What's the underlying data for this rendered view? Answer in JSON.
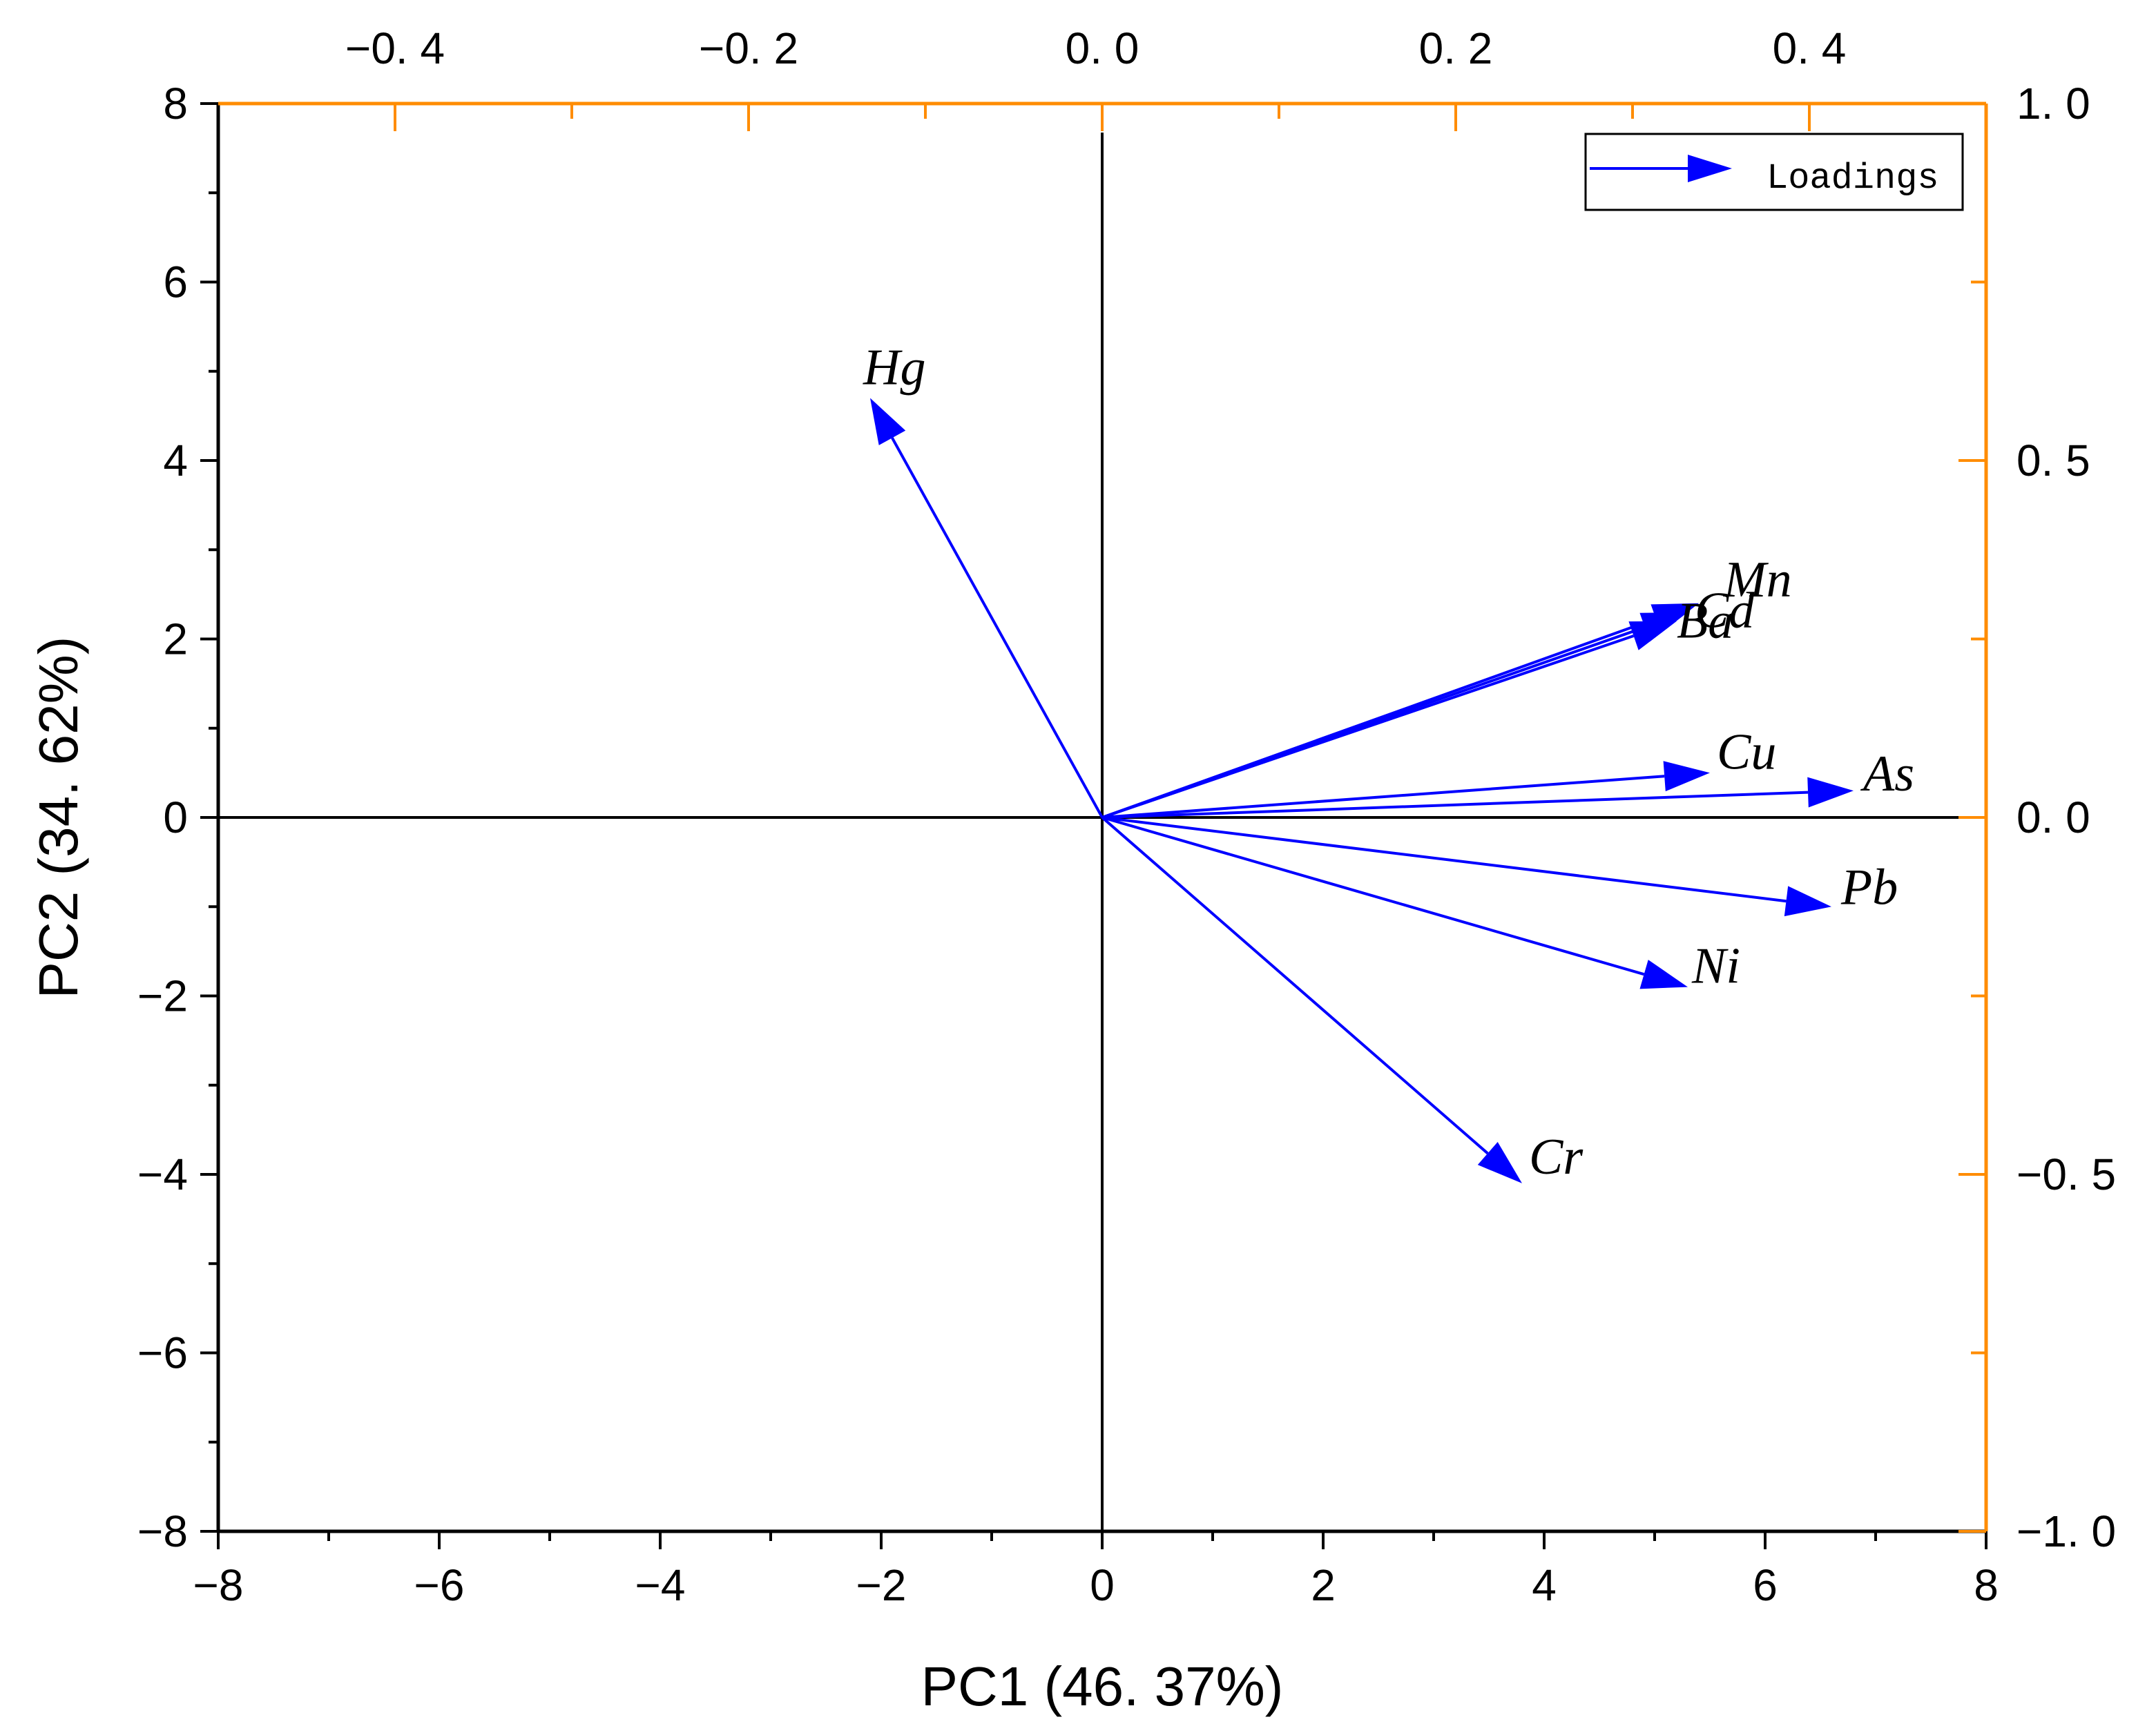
{
  "chart_data": {
    "type": "biplot",
    "x_label": "PC1 (46. 37%)",
    "y_label": "PC2 (34. 62%)",
    "bottom_axis": {
      "range": [
        -8,
        8
      ],
      "ticks": [
        "−8",
        "−6",
        "−4",
        "−2",
        "0",
        "2",
        "4",
        "6",
        "8"
      ],
      "tick_values": [
        -8,
        -6,
        -4,
        -2,
        0,
        2,
        4,
        6,
        8
      ]
    },
    "left_axis": {
      "range": [
        -8,
        8
      ],
      "ticks": [
        "−8",
        "−6",
        "−4",
        "−2",
        "0",
        "2",
        "4",
        "6",
        "8"
      ],
      "tick_values": [
        -8,
        -6,
        -4,
        -2,
        0,
        2,
        4,
        6,
        8
      ]
    },
    "top_axis": {
      "range": [
        -0.5,
        0.5
      ],
      "ticks": [
        "−0. 4",
        "−0. 2",
        "0. 0",
        "0. 2",
        "0. 4"
      ],
      "tick_values": [
        -0.4,
        -0.2,
        0.0,
        0.2,
        0.4
      ]
    },
    "right_axis": {
      "range": [
        -1.0,
        1.0
      ],
      "ticks": [
        "−1. 0",
        "−0. 5",
        "0. 0",
        "0. 5",
        "1. 0"
      ],
      "tick_values": [
        -1.0,
        -0.5,
        0.0,
        0.5,
        1.0
      ]
    },
    "legend": {
      "label": "Loadings",
      "position": "top-right"
    },
    "loadings": [
      {
        "name": "Hg",
        "x": -2.1,
        "y": 4.7
      },
      {
        "name": "Mn",
        "x": 5.4,
        "y": 2.4
      },
      {
        "name": "Cd",
        "x": 5.3,
        "y": 2.3
      },
      {
        "name": "Ba",
        "x": 5.2,
        "y": 2.2
      },
      {
        "name": "Cu",
        "x": 5.5,
        "y": 0.5
      },
      {
        "name": "As",
        "x": 6.8,
        "y": 0.3
      },
      {
        "name": "Pb",
        "x": 6.6,
        "y": -1.0
      },
      {
        "name": "Ni",
        "x": 5.3,
        "y": -1.9
      },
      {
        "name": "Cr",
        "x": 3.8,
        "y": -4.1
      }
    ],
    "colors": {
      "arrow": "#0000ff",
      "secondary_axis": "#ff8c00",
      "axis": "#000000"
    }
  }
}
